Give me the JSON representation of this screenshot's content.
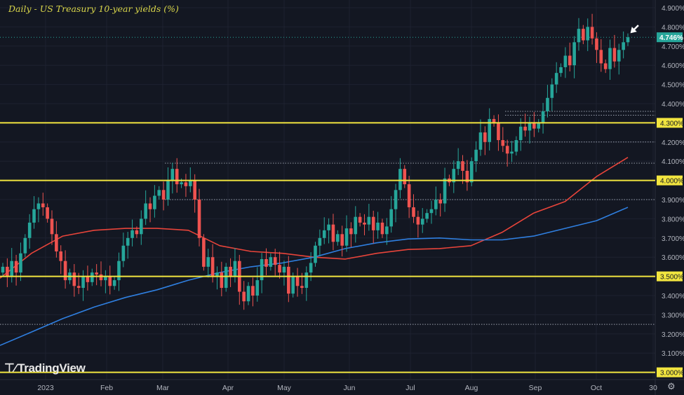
{
  "title": "Daily - US Treasury 10-year yields (%)",
  "logo": {
    "icon": "TV",
    "text": "TradingView"
  },
  "settings_icon": "gear-icon",
  "chart_data": {
    "type": "candlestick",
    "title": "Daily - US Treasury 10-year yields (%)",
    "ylim": [
      3.0,
      4.9
    ],
    "grid": true,
    "y_ticks": [
      "3.100%",
      "3.200%",
      "3.300%",
      "3.400%",
      "3.600%",
      "3.700%",
      "3.800%",
      "3.900%",
      "4.100%",
      "4.200%",
      "4.400%",
      "4.500%",
      "4.600%",
      "4.700%",
      "4.800%",
      "4.900%"
    ],
    "y_tick_values": [
      3.1,
      3.2,
      3.3,
      3.4,
      3.6,
      3.7,
      3.8,
      3.9,
      4.1,
      4.2,
      4.4,
      4.5,
      4.6,
      4.7,
      4.8,
      4.9
    ],
    "x_ticks": [
      "2023",
      "Feb",
      "Mar",
      "Apr",
      "May",
      "Jun",
      "Jul",
      "Aug",
      "Sep",
      "Oct",
      "30"
    ],
    "closes": [
      3.55,
      3.5,
      3.58,
      3.52,
      3.62,
      3.7,
      3.78,
      3.85,
      3.88,
      3.86,
      3.8,
      3.72,
      3.63,
      3.58,
      3.48,
      3.52,
      3.45,
      3.44,
      3.5,
      3.47,
      3.52,
      3.51,
      3.48,
      3.5,
      3.45,
      3.48,
      3.58,
      3.66,
      3.7,
      3.74,
      3.72,
      3.8,
      3.88,
      3.85,
      3.92,
      3.95,
      3.9,
      4.0,
      4.06,
      3.98,
      3.99,
      3.97,
      4.0,
      3.9,
      3.7,
      3.55,
      3.6,
      3.5,
      3.52,
      3.44,
      3.55,
      3.5,
      3.58,
      3.42,
      3.37,
      3.45,
      3.4,
      3.48,
      3.59,
      3.55,
      3.6,
      3.56,
      3.52,
      3.55,
      3.41,
      3.5,
      3.45,
      3.44,
      3.52,
      3.57,
      3.66,
      3.7,
      3.74,
      3.77,
      3.68,
      3.72,
      3.66,
      3.75,
      3.72,
      3.81,
      3.78,
      3.77,
      3.81,
      3.74,
      3.78,
      3.72,
      3.76,
      3.85,
      3.95,
      4.06,
      3.98,
      3.86,
      3.81,
      3.77,
      3.8,
      3.83,
      3.85,
      3.9,
      3.88,
      4.01,
      3.99,
      4.06,
      4.1,
      4.05,
      3.99,
      4.1,
      4.16,
      4.25,
      4.2,
      4.32,
      4.3,
      4.21,
      4.18,
      4.14,
      4.15,
      4.21,
      4.28,
      4.26,
      4.3,
      4.27,
      4.3,
      4.36,
      4.43,
      4.5,
      4.56,
      4.59,
      4.65,
      4.6,
      4.72,
      4.79,
      4.73,
      4.8,
      4.74,
      4.68,
      4.61,
      4.58,
      4.69,
      4.62,
      4.68,
      4.72,
      4.746
    ],
    "series": [
      {
        "color": "#e8443a",
        "values": [
          3.49,
          3.62,
          3.71,
          3.74,
          3.75,
          3.75,
          3.74,
          3.66,
          3.63,
          3.62,
          3.6,
          3.59,
          3.62,
          3.64,
          3.645,
          3.66,
          3.73,
          3.83,
          3.89,
          4.02,
          4.12
        ]
      },
      {
        "color": "#2f7fe0",
        "values": [
          3.14,
          3.21,
          3.28,
          3.34,
          3.39,
          3.43,
          3.48,
          3.52,
          3.55,
          3.57,
          3.6,
          3.645,
          3.675,
          3.695,
          3.7,
          3.69,
          3.69,
          3.71,
          3.75,
          3.79,
          3.86
        ]
      }
    ],
    "horizontal_levels": [
      {
        "value": 4.3,
        "label": "4.300%"
      },
      {
        "value": 4.0,
        "label": "4.000%"
      },
      {
        "value": 3.5,
        "label": "3.500%"
      },
      {
        "value": 3.0,
        "label": "3.000%"
      }
    ],
    "dotted_levels": [
      4.36,
      4.34,
      4.2,
      4.09,
      3.9,
      3.25
    ],
    "last_price": {
      "value": 4.746,
      "label": "4.746%"
    },
    "colors": {
      "up": "#26a69a",
      "down": "#ef5350",
      "level": "#f2e53f",
      "background": "#131722",
      "axis_text": "#b2b5be"
    }
  }
}
